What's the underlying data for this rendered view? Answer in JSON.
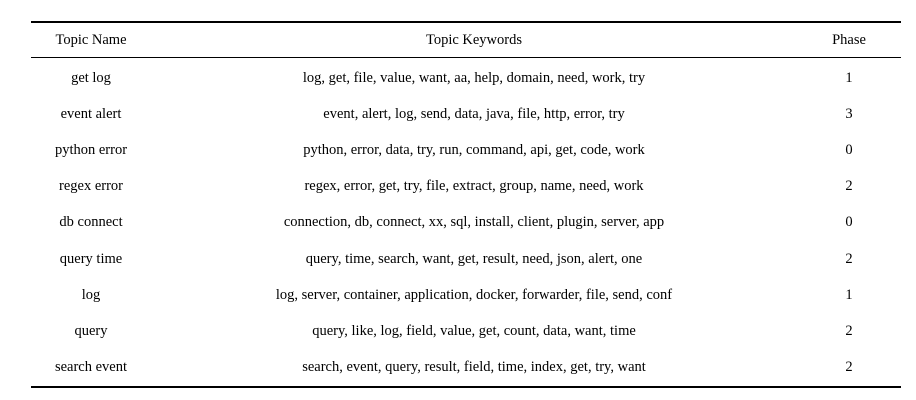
{
  "table": {
    "headers": {
      "topic_name": "Topic Name",
      "topic_keywords": "Topic Keywords",
      "phase": "Phase"
    },
    "rows": [
      {
        "name": "get log",
        "keywords": "log, get, file, value, want, aa, help, domain, need, work, try",
        "phase": "1"
      },
      {
        "name": "event alert",
        "keywords": "event, alert, log, send, data, java, file, http, error, try",
        "phase": "3"
      },
      {
        "name": "python error",
        "keywords": "python, error, data, try, run, command, api, get, code, work",
        "phase": "0"
      },
      {
        "name": "regex error",
        "keywords": "regex, error, get, try, file, extract, group, name, need, work",
        "phase": "2"
      },
      {
        "name": "db connect",
        "keywords": "connection, db, connect, xx, sql, install, client, plugin, server, app",
        "phase": "0"
      },
      {
        "name": "query time",
        "keywords": "query, time, search, want, get, result, need, json, alert, one",
        "phase": "2"
      },
      {
        "name": "log",
        "keywords": "log, server, container, application, docker, forwarder, file, send, conf",
        "phase": "1"
      },
      {
        "name": "query",
        "keywords": "query, like, log, field, value, get, count, data, want, time",
        "phase": "2"
      },
      {
        "name": "search event",
        "keywords": "search, event, query, result, field, time, index, get, try, want",
        "phase": "2"
      }
    ]
  }
}
